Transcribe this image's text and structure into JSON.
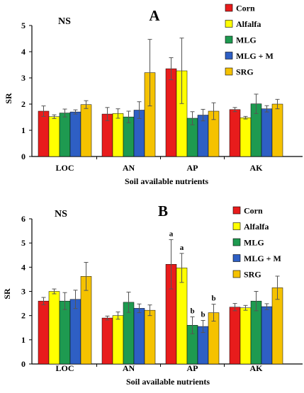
{
  "chart_data": [
    {
      "type": "bar",
      "panel_label": "A",
      "annotation": "NS",
      "xlabel": "Soil available nutrients",
      "ylabel": "SR",
      "ylim": [
        0,
        5
      ],
      "yticks": [
        "0",
        "1",
        "2",
        "3",
        "4",
        "5"
      ],
      "categories": [
        "LOC",
        "AN",
        "AP",
        "AK"
      ],
      "legend_position": "top-right",
      "series": [
        {
          "name": "Corn",
          "color": "#e81c1c",
          "values": [
            1.73,
            1.62,
            3.35,
            1.79
          ],
          "errors": [
            0.2,
            0.25,
            0.42,
            0.08
          ]
        },
        {
          "name": "Alfalfa",
          "color": "#ffff00",
          "values": [
            1.52,
            1.64,
            3.27,
            1.48
          ],
          "errors": [
            0.07,
            0.18,
            1.25,
            0.05
          ]
        },
        {
          "name": "MLG",
          "color": "#1e9a50",
          "values": [
            1.66,
            1.51,
            1.46,
            2.01
          ],
          "errors": [
            0.15,
            0.22,
            0.25,
            0.37
          ]
        },
        {
          "name": "MLG + M",
          "color": "#2e5fc4",
          "values": [
            1.7,
            1.77,
            1.58,
            1.82
          ],
          "errors": [
            0.08,
            0.32,
            0.22,
            0.12
          ]
        },
        {
          "name": "SRG",
          "color": "#f5c200",
          "values": [
            1.98,
            3.2,
            1.73,
            2.0
          ],
          "errors": [
            0.15,
            1.27,
            0.32,
            0.18
          ]
        }
      ],
      "significance": []
    },
    {
      "type": "bar",
      "panel_label": "B",
      "annotation": "NS",
      "xlabel": "Soil available nutrients",
      "ylabel": "SR",
      "ylim": [
        0,
        6
      ],
      "yticks": [
        "0",
        "1",
        "2",
        "3",
        "4",
        "5",
        "6"
      ],
      "categories": [
        "LOC",
        "AN",
        "AP",
        "AK"
      ],
      "legend_position": "top-right",
      "series": [
        {
          "name": "Corn",
          "color": "#e81c1c",
          "values": [
            2.6,
            1.9,
            4.12,
            2.35
          ],
          "errors": [
            0.15,
            0.08,
            1.02,
            0.15
          ]
        },
        {
          "name": "Alfalfa",
          "color": "#ffff00",
          "values": [
            3.0,
            2.0,
            3.97,
            2.32
          ],
          "errors": [
            0.1,
            0.15,
            0.6,
            0.1
          ]
        },
        {
          "name": "MLG",
          "color": "#1e9a50",
          "values": [
            2.6,
            2.55,
            1.6,
            2.6
          ],
          "errors": [
            0.35,
            0.42,
            0.35,
            0.4
          ]
        },
        {
          "name": "MLG + M",
          "color": "#2e5fc4",
          "values": [
            2.67,
            2.3,
            1.55,
            2.37
          ],
          "errors": [
            0.38,
            0.18,
            0.25,
            0.12
          ]
        },
        {
          "name": "SRG",
          "color": "#f5c200",
          "values": [
            3.62,
            2.22,
            2.12,
            3.15
          ],
          "errors": [
            0.58,
            0.22,
            0.35,
            0.48
          ]
        }
      ],
      "significance": [
        {
          "category": "AP",
          "labels": [
            "a",
            "a",
            "b",
            "b",
            "b"
          ]
        }
      ]
    }
  ]
}
